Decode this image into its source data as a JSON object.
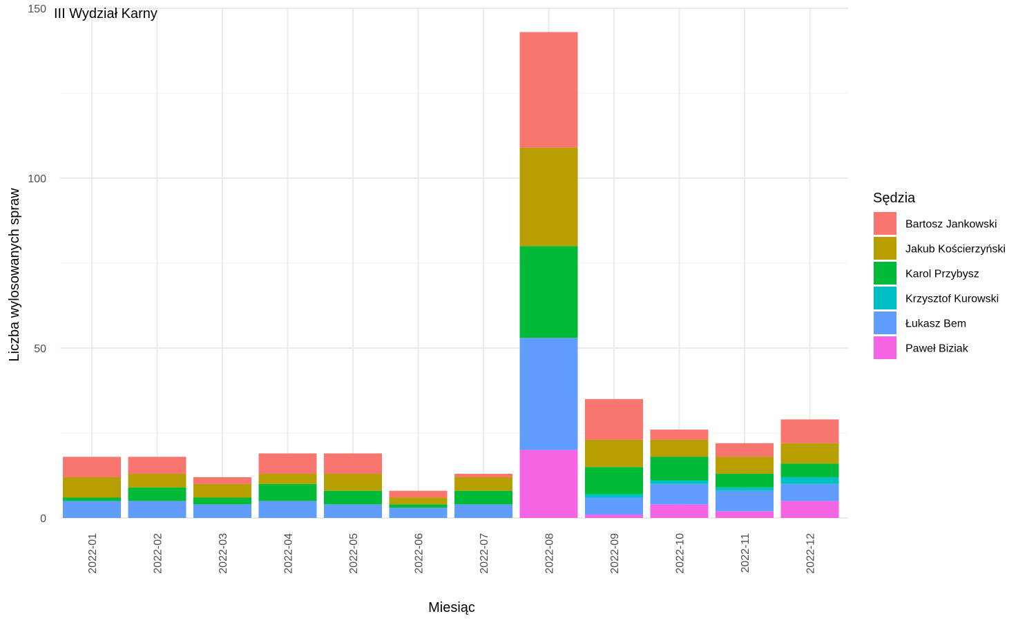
{
  "chart_data": {
    "type": "bar",
    "stacked": true,
    "title": "III Wydział Karny",
    "xlabel": "Miesiąc",
    "ylabel": "Liczba wylosowanych spraw",
    "ylim": [
      0,
      150
    ],
    "yticks": [
      0,
      50,
      100,
      150
    ],
    "grid": true,
    "legend_position": "right",
    "legend_title": "Sędzia",
    "categories": [
      "2022-01",
      "2022-02",
      "2022-03",
      "2022-04",
      "2022-05",
      "2022-06",
      "2022-07",
      "2022-08",
      "2022-09",
      "2022-10",
      "2022-11",
      "2022-12"
    ],
    "series": [
      {
        "name": "Paweł Biziak",
        "color": "#F564E3",
        "values": [
          0,
          0,
          0,
          0,
          0,
          0,
          0,
          20,
          1,
          4,
          2,
          5
        ]
      },
      {
        "name": "Łukasz Bem",
        "color": "#619CFF",
        "values": [
          5,
          5,
          4,
          5,
          4,
          3,
          4,
          33,
          5,
          6,
          6,
          5
        ]
      },
      {
        "name": "Krzysztof Kurowski",
        "color": "#00BFC4",
        "values": [
          0,
          0,
          0,
          0,
          0,
          0,
          0,
          0,
          1,
          1,
          1,
          2
        ]
      },
      {
        "name": "Karol Przybysz",
        "color": "#00BA38",
        "values": [
          1,
          4,
          2,
          5,
          4,
          1,
          4,
          27,
          8,
          7,
          4,
          4
        ]
      },
      {
        "name": "Jakub Kościerzyński",
        "color": "#B79F00",
        "values": [
          6,
          4,
          4,
          3,
          5,
          2,
          4,
          29,
          8,
          5,
          5,
          6
        ]
      },
      {
        "name": "Bartosz Jankowski",
        "color": "#F8766D",
        "values": [
          6,
          5,
          2,
          6,
          6,
          2,
          1,
          34,
          12,
          3,
          4,
          7
        ]
      }
    ],
    "legend_order": [
      "Bartosz Jankowski",
      "Jakub Kościerzyński",
      "Karol Przybysz",
      "Krzysztof Kurowski",
      "Łukasz Bem",
      "Paweł Biziak"
    ]
  }
}
